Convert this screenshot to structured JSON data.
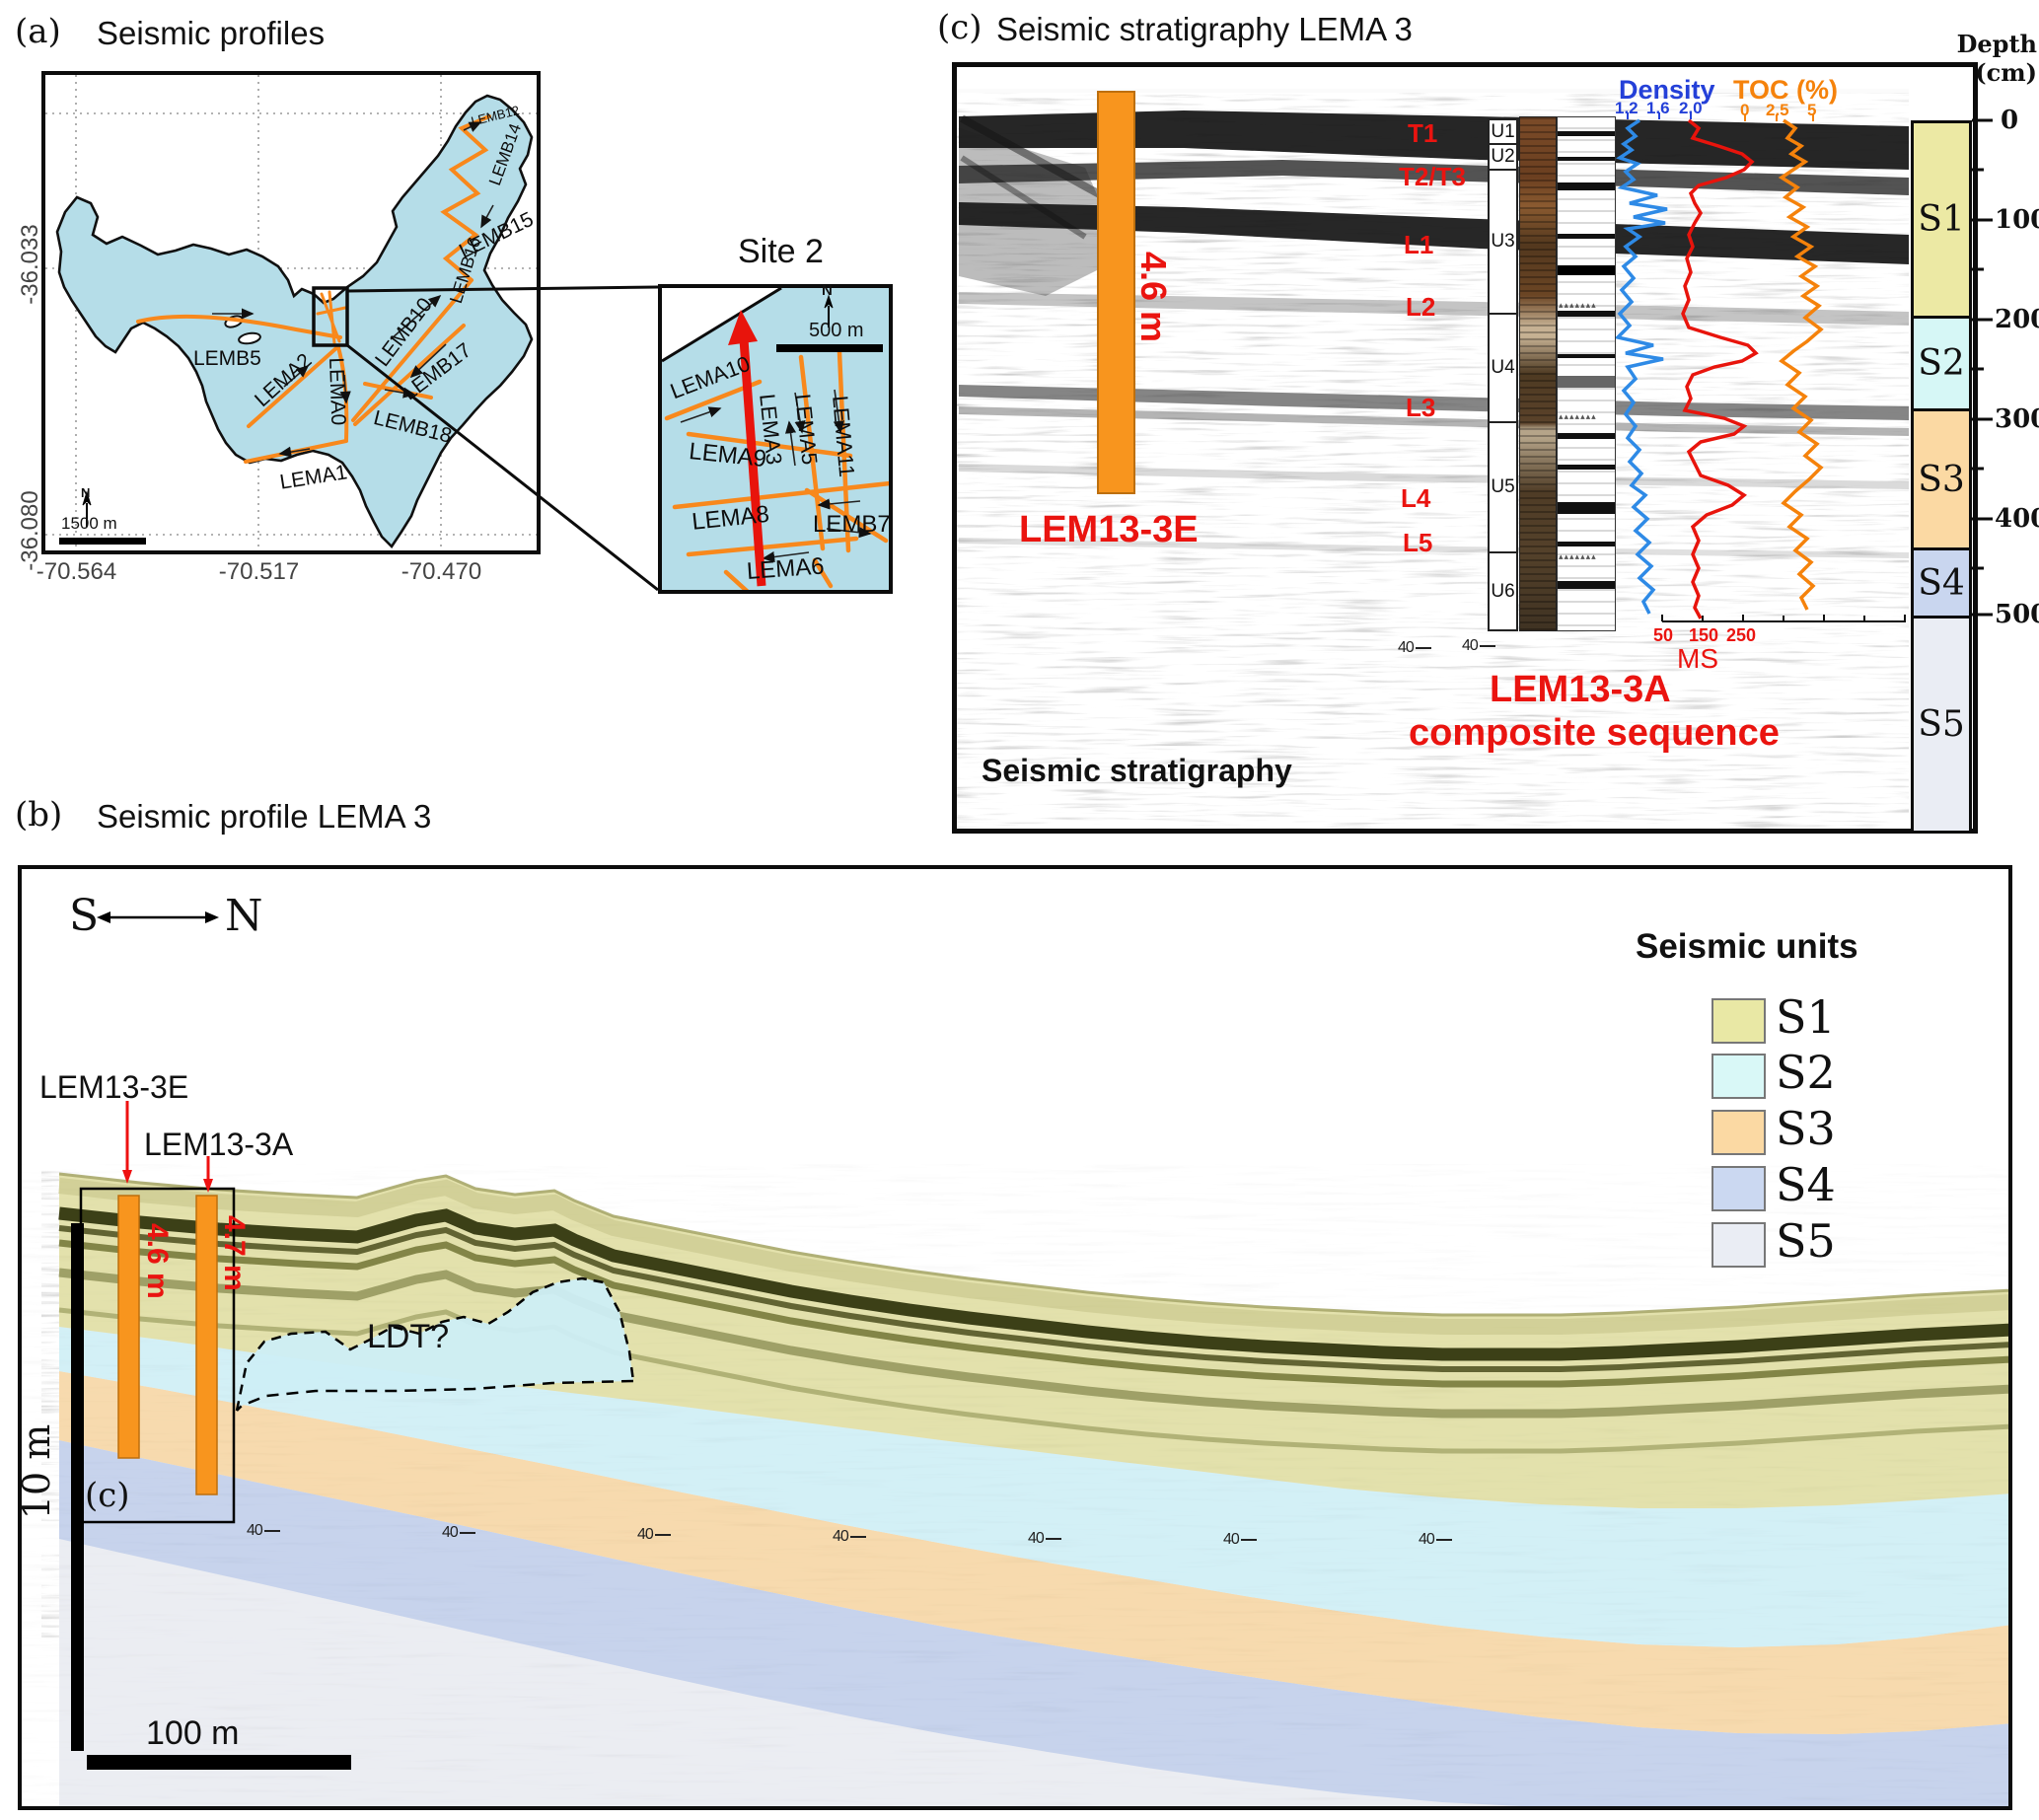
{
  "panel_a": {
    "tag": "(a)",
    "title": "Seismic profiles",
    "axis": {
      "x_ticks": [
        "-70.564",
        "-70.517",
        "-70.470"
      ],
      "y_ticks": [
        "-36.033",
        "-36.080"
      ]
    },
    "north_label": "N",
    "scale_bar": "1500 m",
    "line_labels": [
      "LEMB5",
      "LEMA2",
      "LEMA0",
      "LEMA1",
      "LEMB18",
      "LEMB17",
      "LEMB10",
      "LEMB16",
      "LEMB15",
      "LEMB14",
      "LEMB12"
    ],
    "inset": {
      "title": "Site 2",
      "north_label": "N",
      "scale_bar": "500 m",
      "line_labels": [
        "LEMA10",
        "LEMA3",
        "LEMA5",
        "LEMA11",
        "LEMA9",
        "LEMA8",
        "LEMB7",
        "LEMA6"
      ]
    }
  },
  "panel_b": {
    "tag": "(b)",
    "title": "Seismic profile LEMA 3",
    "compass": {
      "south": "S",
      "north": "N"
    },
    "cores": [
      {
        "name": "LEM13-3E",
        "length": "4.6 m"
      },
      {
        "name": "LEM13-3A",
        "length": "4.7 m"
      }
    ],
    "subpanel_ref": "(c)",
    "ldt_label": "LDT?",
    "v_scale": "10 m",
    "h_scale": "100 m",
    "tick_label": "40",
    "legend": {
      "title": "Seismic units",
      "items": [
        {
          "label": "S1",
          "color": "#e9e8a5"
        },
        {
          "label": "S2",
          "color": "#d9f8f7"
        },
        {
          "label": "S3",
          "color": "#fbd9a3"
        },
        {
          "label": "S4",
          "color": "#cbd8f1"
        },
        {
          "label": "S5",
          "color": "#eaedf4"
        }
      ]
    }
  },
  "panel_c": {
    "tag": "(c)",
    "title": "Seismic stratigraphy LEMA 3",
    "depth_axis": {
      "title": "Depth (cm)",
      "major_ticks": [
        "0",
        "100",
        "200",
        "300",
        "400",
        "500"
      ]
    },
    "core_bar": {
      "name": "LEM13-3E",
      "length": "4.6 m"
    },
    "horizon_labels": [
      "T1",
      "T2/T3",
      "L1",
      "L2",
      "L3",
      "L4",
      "L5"
    ],
    "units_column": [
      "U1",
      "U2",
      "U3",
      "U4",
      "U5",
      "U6"
    ],
    "curves": {
      "density": {
        "label": "Density",
        "ticks": [
          "1.2",
          "1.6",
          "2.0"
        ],
        "color": "#2440d8"
      },
      "toc": {
        "label": "TOC (%)",
        "ticks": [
          "0",
          "2.5",
          "5"
        ],
        "color": "#f5820b"
      },
      "ms": {
        "label": "MS",
        "ticks": [
          "50",
          "150",
          "250"
        ],
        "color": "#ea1410"
      }
    },
    "composite_line1": "LEM13-3A",
    "composite_line2": "composite sequence",
    "seismic_label": "Seismic stratigraphy",
    "tick_label": "40",
    "depth_units": [
      {
        "label": "S1",
        "color": "#ece9a4",
        "range_cm": "0–200"
      },
      {
        "label": "S2",
        "color": "#d6f7f6",
        "range_cm": "200–290"
      },
      {
        "label": "S3",
        "color": "#fbd9a3",
        "range_cm": "290–435"
      },
      {
        "label": "S4",
        "color": "#c9d6ef",
        "range_cm": "435–500"
      },
      {
        "label": "S5",
        "color": "#eaedf4",
        "range_cm": "500+"
      }
    ]
  }
}
